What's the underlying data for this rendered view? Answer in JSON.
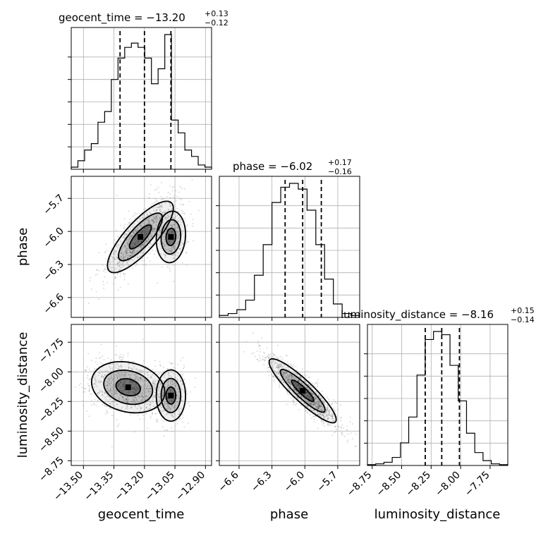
{
  "chart_data": {
    "type": "corner",
    "parameters": [
      "geocent_time",
      "phase",
      "luminosity_distance"
    ],
    "titles": [
      {
        "param": "geocent_time",
        "prefix": "geocent_time = ",
        "median": "−13.20",
        "upper": "+0.13",
        "lower": "−0.12"
      },
      {
        "param": "phase",
        "prefix": "phase = ",
        "median": "−6.02",
        "upper": "+0.17",
        "lower": "−0.16"
      },
      {
        "param": "luminosity_distance",
        "prefix": "luminosity_distance = ",
        "median": "−8.16",
        "upper": "+0.15",
        "lower": "−0.14"
      }
    ],
    "axis_labels": {
      "geocent_time": "geocent_time",
      "phase": "phase",
      "luminosity_distance": "luminosity_distance"
    },
    "ranges": {
      "geocent_time": [
        -13.56,
        -12.87
      ],
      "phase": [
        -6.78,
        -5.5
      ],
      "luminosity_distance": [
        -8.79,
        -7.6
      ]
    },
    "ticks": {
      "geocent_time": {
        "values": [
          -13.5,
          -13.35,
          -13.2,
          -13.05,
          -12.9
        ],
        "labels": [
          "−13.50",
          "−13.35",
          "−13.20",
          "−13.05",
          "−12.90"
        ]
      },
      "phase": {
        "values": [
          -6.6,
          -6.3,
          -6.0,
          -5.7
        ],
        "labels": [
          "−6.6",
          "−6.3",
          "−6.0",
          "−5.7"
        ]
      },
      "luminosity_distance": {
        "values": [
          -8.75,
          -8.5,
          -8.25,
          -8.0,
          -7.75
        ],
        "labels": [
          "−8.75",
          "−8.50",
          "−8.25",
          "−8.00",
          "−7.75"
        ]
      }
    },
    "quantiles": {
      "geocent_time": [
        -13.32,
        -13.2,
        -13.07
      ],
      "phase": [
        -6.18,
        -6.02,
        -5.85
      ],
      "luminosity_distance": [
        -8.3,
        -8.16,
        -8.01
      ]
    },
    "histograms": {
      "geocent_time": [
        1,
        4,
        9,
        12,
        22,
        27,
        42,
        52,
        57,
        59,
        57,
        52,
        40,
        47,
        63,
        23,
        17,
        9,
        6,
        2,
        1
      ],
      "phase": [
        1,
        2,
        4,
        9,
        22,
        38,
        60,
        68,
        70,
        67,
        56,
        38,
        20,
        7,
        2,
        1
      ],
      "luminosity_distance": [
        0.5,
        1,
        2,
        5,
        14,
        30,
        56,
        78,
        83,
        81,
        62,
        40,
        20,
        8,
        3,
        1,
        0.5
      ]
    },
    "grid": true
  }
}
